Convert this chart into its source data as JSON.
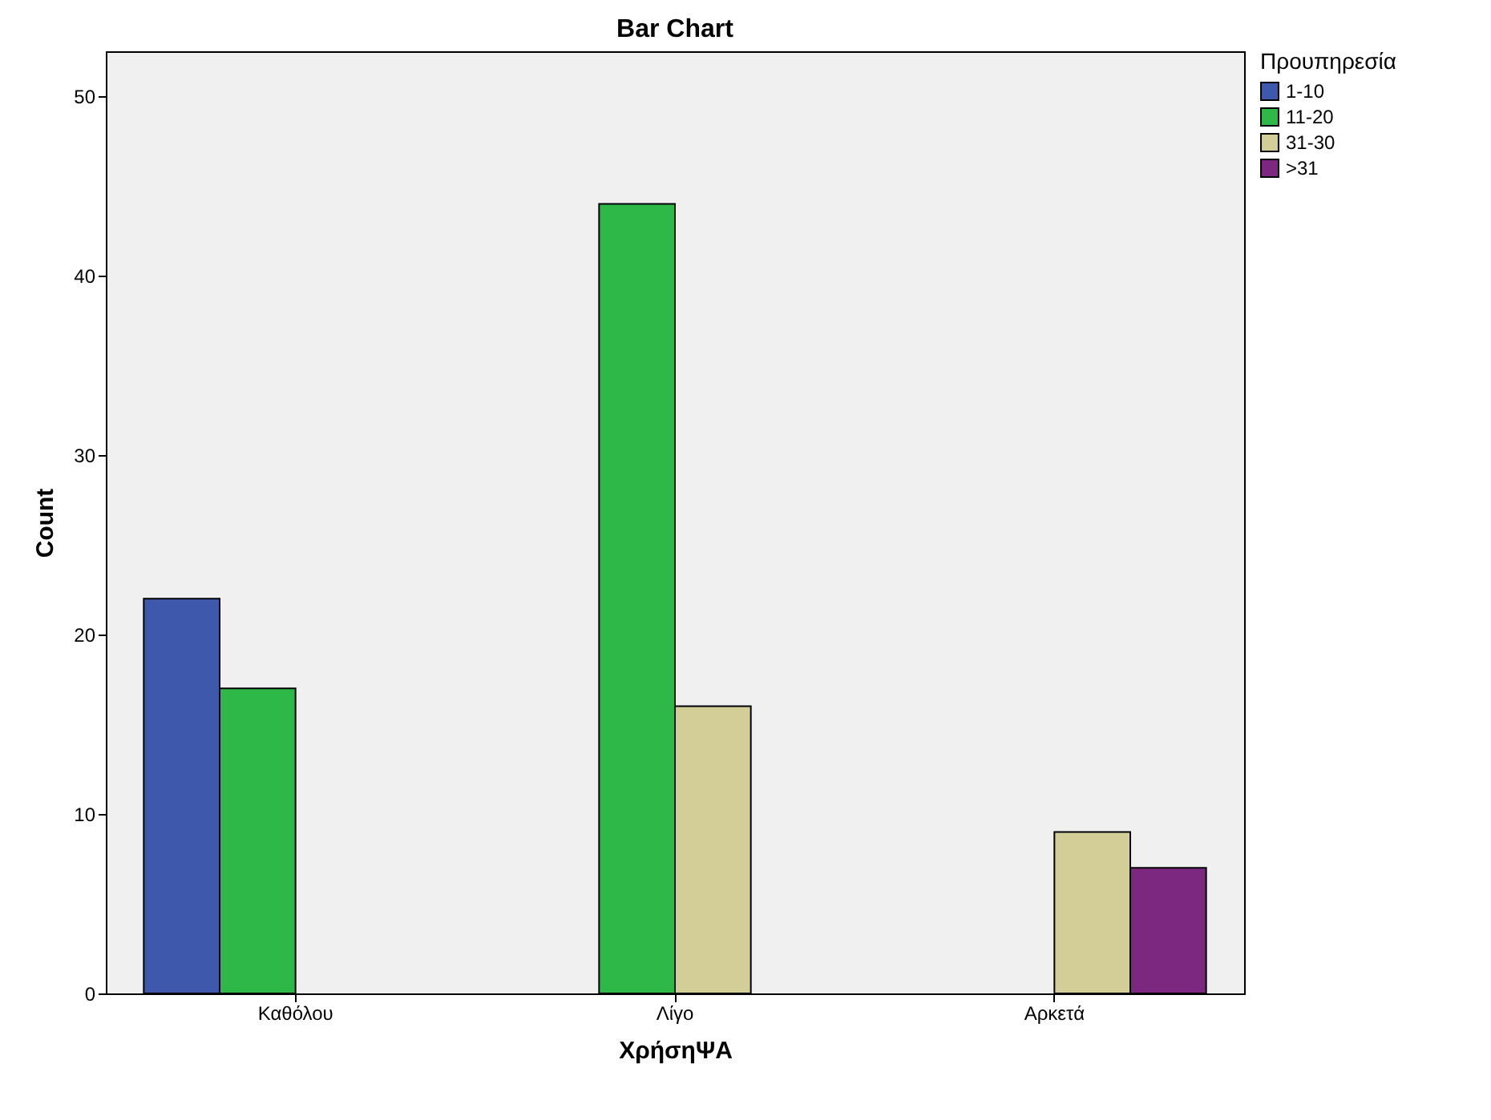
{
  "chart_data": {
    "type": "bar",
    "title": "Bar Chart",
    "xlabel": "ΧρήσηΨΑ",
    "ylabel": "Count",
    "legend_title": "Προυπηρεσία",
    "categories": [
      "Καθόλου",
      "Λίγο",
      "Αρκετά"
    ],
    "series": [
      {
        "name": "1-10",
        "color": "#3e58ac",
        "values": [
          22,
          null,
          null
        ]
      },
      {
        "name": "11-20",
        "color": "#2eb848",
        "values": [
          17,
          44,
          null
        ]
      },
      {
        "name": "31-30",
        "color": "#d3ce97",
        "values": [
          null,
          16,
          9
        ]
      },
      {
        "name": ">31",
        "color": "#7d2880",
        "values": [
          null,
          null,
          7
        ]
      }
    ],
    "ylim": [
      0,
      52.5
    ],
    "yticks": [
      0,
      10,
      20,
      30,
      40,
      50
    ],
    "legend": "top right",
    "grid": false
  }
}
